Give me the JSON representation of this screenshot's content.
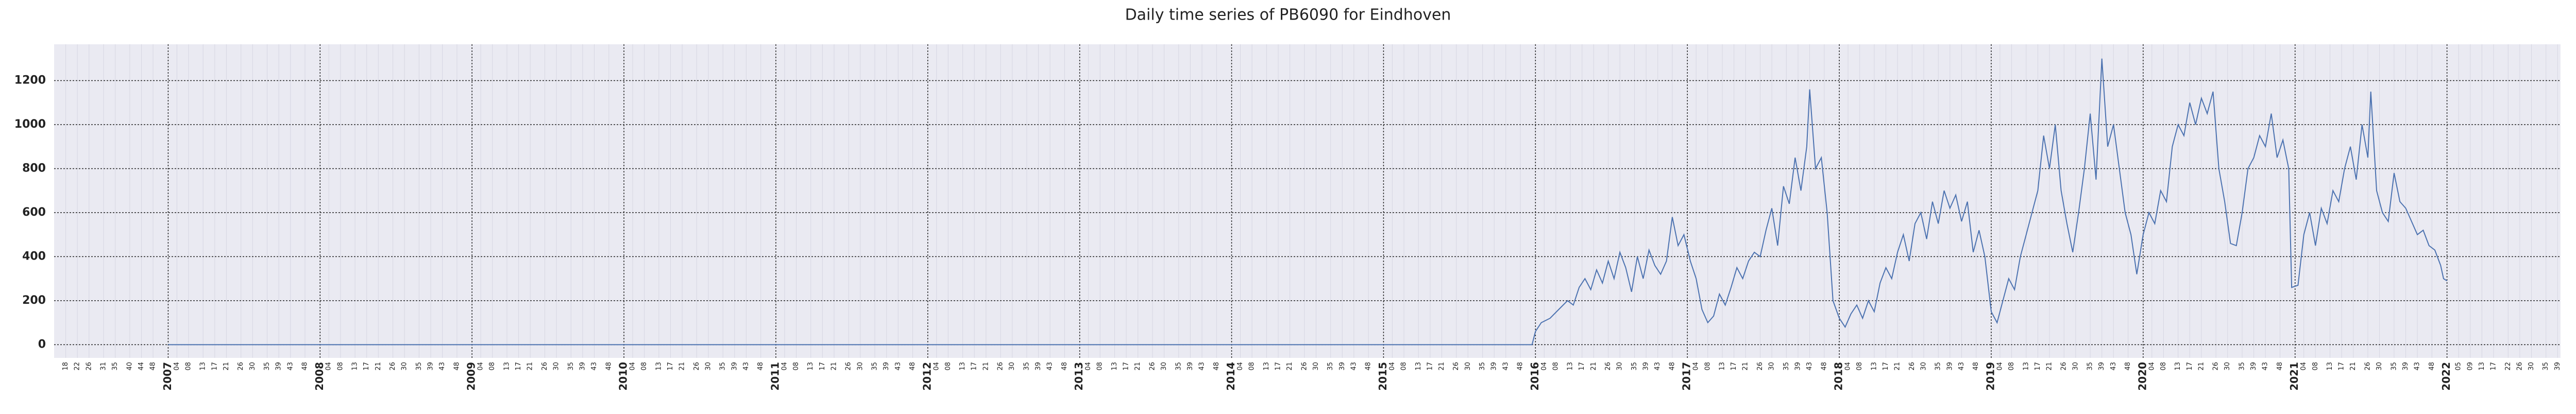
{
  "chart_data": {
    "type": "line",
    "title": "Daily time series of PB6090 for Eindhoven",
    "xlim": [
      "2006-W14",
      "2022-W40"
    ],
    "ylim": [
      -60,
      1365
    ],
    "yticks": [
      0,
      200,
      400,
      600,
      800,
      1000,
      1200
    ],
    "grid": true,
    "background": "#eaeaf2",
    "xticks": [
      {
        "value": "2007-W01",
        "label": "2007"
      },
      {
        "value": "2008-W01",
        "label": "2008"
      },
      {
        "value": "2009-W01",
        "label": "2009"
      },
      {
        "value": "2010-W01",
        "label": "2010"
      },
      {
        "value": "2011-W01",
        "label": "2011"
      },
      {
        "value": "2012-W01",
        "label": "2012"
      },
      {
        "value": "2013-W01",
        "label": "2013"
      },
      {
        "value": "2014-W01",
        "label": "2014"
      },
      {
        "value": "2015-W01",
        "label": "2015"
      },
      {
        "value": "2016-W01",
        "label": "2016"
      },
      {
        "value": "2017-W01",
        "label": "2017"
      },
      {
        "value": "2018-W01",
        "label": "2018"
      },
      {
        "value": "2019-W01",
        "label": "2019"
      },
      {
        "value": "2020-W01",
        "label": "2020"
      },
      {
        "value": "2021-W01",
        "label": "2021"
      },
      {
        "value": "2022-W01",
        "label": "2022"
      }
    ],
    "minor_xticks": [
      {
        "value": "2006-W18",
        "label": "18"
      },
      {
        "value": "2006-W22",
        "label": "22"
      },
      {
        "value": "2006-W26",
        "label": "26"
      },
      {
        "value": "2006-W31",
        "label": "31"
      },
      {
        "value": "2006-W35",
        "label": "35"
      },
      {
        "value": "2006-W40",
        "label": "40"
      },
      {
        "value": "2006-W44",
        "label": "44"
      },
      {
        "value": "2006-W48",
        "label": "48"
      },
      {
        "value": "2007-W04",
        "label": "04"
      },
      {
        "value": "2007-W08",
        "label": "08"
      },
      {
        "value": "2007-W13",
        "label": "13"
      },
      {
        "value": "2007-W17",
        "label": "17"
      },
      {
        "value": "2007-W21",
        "label": "21"
      },
      {
        "value": "2007-W26",
        "label": "26"
      },
      {
        "value": "2007-W30",
        "label": "30"
      },
      {
        "value": "2007-W35",
        "label": "35"
      },
      {
        "value": "2007-W39",
        "label": "39"
      },
      {
        "value": "2007-W43",
        "label": "43"
      },
      {
        "value": "2007-W48",
        "label": "48"
      },
      {
        "value": "2008-W04",
        "label": "04"
      },
      {
        "value": "2008-W08",
        "label": "08"
      },
      {
        "value": "2008-W13",
        "label": "13"
      },
      {
        "value": "2008-W17",
        "label": "17"
      },
      {
        "value": "2008-W21",
        "label": "21"
      },
      {
        "value": "2008-W26",
        "label": "26"
      },
      {
        "value": "2008-W30",
        "label": "30"
      },
      {
        "value": "2008-W35",
        "label": "35"
      },
      {
        "value": "2008-W39",
        "label": "39"
      },
      {
        "value": "2008-W43",
        "label": "43"
      },
      {
        "value": "2008-W48",
        "label": "48"
      },
      {
        "value": "2009-W04",
        "label": "04"
      },
      {
        "value": "2009-W08",
        "label": "08"
      },
      {
        "value": "2009-W13",
        "label": "13"
      },
      {
        "value": "2009-W17",
        "label": "17"
      },
      {
        "value": "2009-W21",
        "label": "21"
      },
      {
        "value": "2009-W26",
        "label": "26"
      },
      {
        "value": "2009-W30",
        "label": "30"
      },
      {
        "value": "2009-W35",
        "label": "35"
      },
      {
        "value": "2009-W39",
        "label": "39"
      },
      {
        "value": "2009-W43",
        "label": "43"
      },
      {
        "value": "2009-W48",
        "label": "48"
      },
      {
        "value": "2010-W04",
        "label": "04"
      },
      {
        "value": "2010-W08",
        "label": "08"
      },
      {
        "value": "2010-W13",
        "label": "13"
      },
      {
        "value": "2010-W17",
        "label": "17"
      },
      {
        "value": "2010-W21",
        "label": "21"
      },
      {
        "value": "2010-W26",
        "label": "26"
      },
      {
        "value": "2010-W30",
        "label": "30"
      },
      {
        "value": "2010-W35",
        "label": "35"
      },
      {
        "value": "2010-W39",
        "label": "39"
      },
      {
        "value": "2010-W43",
        "label": "43"
      },
      {
        "value": "2010-W48",
        "label": "48"
      },
      {
        "value": "2011-W04",
        "label": "04"
      },
      {
        "value": "2011-W08",
        "label": "08"
      },
      {
        "value": "2011-W13",
        "label": "13"
      },
      {
        "value": "2011-W17",
        "label": "17"
      },
      {
        "value": "2011-W21",
        "label": "21"
      },
      {
        "value": "2011-W26",
        "label": "26"
      },
      {
        "value": "2011-W30",
        "label": "30"
      },
      {
        "value": "2011-W35",
        "label": "35"
      },
      {
        "value": "2011-W39",
        "label": "39"
      },
      {
        "value": "2011-W43",
        "label": "43"
      },
      {
        "value": "2011-W48",
        "label": "48"
      },
      {
        "value": "2012-W04",
        "label": "04"
      },
      {
        "value": "2012-W08",
        "label": "08"
      },
      {
        "value": "2012-W13",
        "label": "13"
      },
      {
        "value": "2012-W17",
        "label": "17"
      },
      {
        "value": "2012-W21",
        "label": "21"
      },
      {
        "value": "2012-W26",
        "label": "26"
      },
      {
        "value": "2012-W30",
        "label": "30"
      },
      {
        "value": "2012-W35",
        "label": "35"
      },
      {
        "value": "2012-W39",
        "label": "39"
      },
      {
        "value": "2012-W43",
        "label": "43"
      },
      {
        "value": "2012-W48",
        "label": "48"
      },
      {
        "value": "2013-W04",
        "label": "04"
      },
      {
        "value": "2013-W08",
        "label": "08"
      },
      {
        "value": "2013-W13",
        "label": "13"
      },
      {
        "value": "2013-W17",
        "label": "17"
      },
      {
        "value": "2013-W21",
        "label": "21"
      },
      {
        "value": "2013-W26",
        "label": "26"
      },
      {
        "value": "2013-W30",
        "label": "30"
      },
      {
        "value": "2013-W35",
        "label": "35"
      },
      {
        "value": "2013-W39",
        "label": "39"
      },
      {
        "value": "2013-W43",
        "label": "43"
      },
      {
        "value": "2013-W48",
        "label": "48"
      },
      {
        "value": "2014-W04",
        "label": "04"
      },
      {
        "value": "2014-W08",
        "label": "08"
      },
      {
        "value": "2014-W13",
        "label": "13"
      },
      {
        "value": "2014-W17",
        "label": "17"
      },
      {
        "value": "2014-W21",
        "label": "21"
      },
      {
        "value": "2014-W26",
        "label": "26"
      },
      {
        "value": "2014-W30",
        "label": "30"
      },
      {
        "value": "2014-W35",
        "label": "35"
      },
      {
        "value": "2014-W39",
        "label": "39"
      },
      {
        "value": "2014-W43",
        "label": "43"
      },
      {
        "value": "2014-W48",
        "label": "48"
      },
      {
        "value": "2015-W04",
        "label": "04"
      },
      {
        "value": "2015-W08",
        "label": "08"
      },
      {
        "value": "2015-W13",
        "label": "13"
      },
      {
        "value": "2015-W17",
        "label": "17"
      },
      {
        "value": "2015-W21",
        "label": "21"
      },
      {
        "value": "2015-W26",
        "label": "26"
      },
      {
        "value": "2015-W30",
        "label": "30"
      },
      {
        "value": "2015-W35",
        "label": "35"
      },
      {
        "value": "2015-W39",
        "label": "39"
      },
      {
        "value": "2015-W43",
        "label": "43"
      },
      {
        "value": "2015-W48",
        "label": "48"
      },
      {
        "value": "2016-W04",
        "label": "04"
      },
      {
        "value": "2016-W08",
        "label": "08"
      },
      {
        "value": "2016-W13",
        "label": "13"
      },
      {
        "value": "2016-W17",
        "label": "17"
      },
      {
        "value": "2016-W21",
        "label": "21"
      },
      {
        "value": "2016-W26",
        "label": "26"
      },
      {
        "value": "2016-W30",
        "label": "30"
      },
      {
        "value": "2016-W35",
        "label": "35"
      },
      {
        "value": "2016-W39",
        "label": "39"
      },
      {
        "value": "2016-W43",
        "label": "43"
      },
      {
        "value": "2016-W48",
        "label": "48"
      },
      {
        "value": "2017-W04",
        "label": "04"
      },
      {
        "value": "2017-W08",
        "label": "08"
      },
      {
        "value": "2017-W13",
        "label": "13"
      },
      {
        "value": "2017-W17",
        "label": "17"
      },
      {
        "value": "2017-W21",
        "label": "21"
      },
      {
        "value": "2017-W26",
        "label": "26"
      },
      {
        "value": "2017-W30",
        "label": "30"
      },
      {
        "value": "2017-W35",
        "label": "35"
      },
      {
        "value": "2017-W39",
        "label": "39"
      },
      {
        "value": "2017-W43",
        "label": "43"
      },
      {
        "value": "2017-W48",
        "label": "48"
      },
      {
        "value": "2018-W04",
        "label": "04"
      },
      {
        "value": "2018-W08",
        "label": "08"
      },
      {
        "value": "2018-W13",
        "label": "13"
      },
      {
        "value": "2018-W17",
        "label": "17"
      },
      {
        "value": "2018-W21",
        "label": "21"
      },
      {
        "value": "2018-W26",
        "label": "26"
      },
      {
        "value": "2018-W30",
        "label": "30"
      },
      {
        "value": "2018-W35",
        "label": "35"
      },
      {
        "value": "2018-W39",
        "label": "39"
      },
      {
        "value": "2018-W43",
        "label": "43"
      },
      {
        "value": "2018-W48",
        "label": "48"
      },
      {
        "value": "2019-W04",
        "label": "04"
      },
      {
        "value": "2019-W08",
        "label": "08"
      },
      {
        "value": "2019-W13",
        "label": "13"
      },
      {
        "value": "2019-W17",
        "label": "17"
      },
      {
        "value": "2019-W21",
        "label": "21"
      },
      {
        "value": "2019-W26",
        "label": "26"
      },
      {
        "value": "2019-W30",
        "label": "30"
      },
      {
        "value": "2019-W35",
        "label": "35"
      },
      {
        "value": "2019-W39",
        "label": "39"
      },
      {
        "value": "2019-W43",
        "label": "43"
      },
      {
        "value": "2019-W48",
        "label": "48"
      },
      {
        "value": "2020-W04",
        "label": "04"
      },
      {
        "value": "2020-W08",
        "label": "08"
      },
      {
        "value": "2020-W13",
        "label": "13"
      },
      {
        "value": "2020-W17",
        "label": "17"
      },
      {
        "value": "2020-W21",
        "label": "21"
      },
      {
        "value": "2020-W26",
        "label": "26"
      },
      {
        "value": "2020-W30",
        "label": "30"
      },
      {
        "value": "2020-W35",
        "label": "35"
      },
      {
        "value": "2020-W39",
        "label": "39"
      },
      {
        "value": "2020-W43",
        "label": "43"
      },
      {
        "value": "2020-W48",
        "label": "48"
      },
      {
        "value": "2021-W04",
        "label": "04"
      },
      {
        "value": "2021-W08",
        "label": "08"
      },
      {
        "value": "2021-W13",
        "label": "13"
      },
      {
        "value": "2021-W17",
        "label": "17"
      },
      {
        "value": "2021-W21",
        "label": "21"
      },
      {
        "value": "2021-W26",
        "label": "26"
      },
      {
        "value": "2021-W30",
        "label": "30"
      },
      {
        "value": "2021-W35",
        "label": "35"
      },
      {
        "value": "2021-W39",
        "label": "39"
      },
      {
        "value": "2021-W43",
        "label": "43"
      },
      {
        "value": "2021-W48",
        "label": "48"
      },
      {
        "value": "2022-W05",
        "label": "05"
      },
      {
        "value": "2022-W09",
        "label": "09"
      },
      {
        "value": "2022-W13",
        "label": "13"
      },
      {
        "value": "2022-W17",
        "label": "17"
      },
      {
        "value": "2022-W22",
        "label": "22"
      },
      {
        "value": "2022-W26",
        "label": "26"
      },
      {
        "value": "2022-W30",
        "label": "30"
      },
      {
        "value": "2022-W35",
        "label": "35"
      },
      {
        "value": "2022-W39",
        "label": "39"
      }
    ],
    "x": [
      "2007-W01",
      "2015-W52",
      "2016-W01",
      "2016-W03",
      "2016-W06",
      "2016-W09",
      "2016-W12",
      "2016-W14",
      "2016-W16",
      "2016-W18",
      "2016-W20",
      "2016-W22",
      "2016-W24",
      "2016-W26",
      "2016-W28",
      "2016-W30",
      "2016-W32",
      "2016-W34",
      "2016-W36",
      "2016-W38",
      "2016-W40",
      "2016-W42",
      "2016-W44",
      "2016-W46",
      "2016-W48",
      "2016-W50",
      "2016-W52",
      "2017-W02",
      "2017-W04",
      "2017-W06",
      "2017-W08",
      "2017-W10",
      "2017-W12",
      "2017-W14",
      "2017-W16",
      "2017-W18",
      "2017-W20",
      "2017-W22",
      "2017-W24",
      "2017-W26",
      "2017-W28",
      "2017-W30",
      "2017-W32",
      "2017-W34",
      "2017-W36",
      "2017-W38",
      "2017-W40",
      "2017-W42",
      "2017-W43",
      "2017-W45",
      "2017-W47",
      "2017-W49",
      "2017-W51",
      "2018-W01",
      "2018-W03",
      "2018-W05",
      "2018-W07",
      "2018-W09",
      "2018-W11",
      "2018-W13",
      "2018-W15",
      "2018-W17",
      "2018-W19",
      "2018-W21",
      "2018-W23",
      "2018-W25",
      "2018-W27",
      "2018-W29",
      "2018-W31",
      "2018-W33",
      "2018-W35",
      "2018-W37",
      "2018-W39",
      "2018-W41",
      "2018-W43",
      "2018-W45",
      "2018-W47",
      "2018-W49",
      "2018-W51",
      "2019-W01",
      "2019-W03",
      "2019-W05",
      "2019-W07",
      "2019-W09",
      "2019-W11",
      "2019-W13",
      "2019-W15",
      "2019-W17",
      "2019-W19",
      "2019-W21",
      "2019-W23",
      "2019-W25",
      "2019-W27",
      "2019-W29",
      "2019-W31",
      "2019-W33",
      "2019-W35",
      "2019-W37",
      "2019-W39",
      "2019-W41",
      "2019-W43",
      "2019-W45",
      "2019-W47",
      "2019-W49",
      "2019-W51",
      "2020-W01",
      "2020-W03",
      "2020-W05",
      "2020-W07",
      "2020-W09",
      "2020-W11",
      "2020-W13",
      "2020-W15",
      "2020-W17",
      "2020-W19",
      "2020-W21",
      "2020-W23",
      "2020-W25",
      "2020-W27",
      "2020-W29",
      "2020-W31",
      "2020-W33",
      "2020-W35",
      "2020-W37",
      "2020-W39",
      "2020-W41",
      "2020-W43",
      "2020-W45",
      "2020-W47",
      "2020-W49",
      "2020-W51",
      "2020-W52",
      "2021-W02",
      "2021-W04",
      "2021-W06",
      "2021-W08",
      "2021-W10",
      "2021-W12",
      "2021-W14",
      "2021-W16",
      "2021-W18",
      "2021-W20",
      "2021-W22",
      "2021-W24",
      "2021-W26",
      "2021-W27",
      "2021-W29",
      "2021-W31",
      "2021-W33",
      "2021-W35",
      "2021-W37",
      "2021-W39",
      "2021-W41",
      "2021-W43",
      "2021-W45",
      "2021-W47",
      "2021-W49",
      "2021-W51",
      "2021-W52",
      "2022-W01"
    ],
    "series": [
      {
        "color": "#4c72b0",
        "values": [
          0,
          0,
          60,
          100,
          120,
          160,
          200,
          180,
          260,
          300,
          250,
          340,
          280,
          380,
          300,
          420,
          350,
          240,
          400,
          300,
          430,
          360,
          320,
          380,
          580,
          450,
          500,
          380,
          300,
          160,
          100,
          130,
          230,
          180,
          260,
          350,
          300,
          380,
          420,
          400,
          520,
          620,
          450,
          720,
          640,
          850,
          700,
          900,
          1160,
          800,
          850,
          600,
          200,
          120,
          80,
          140,
          180,
          120,
          200,
          150,
          280,
          350,
          300,
          420,
          500,
          380,
          550,
          600,
          480,
          650,
          550,
          700,
          620,
          680,
          560,
          650,
          420,
          520,
          400,
          150,
          100,
          200,
          300,
          250,
          400,
          500,
          600,
          700,
          950,
          800,
          1000,
          700,
          550,
          420,
          600,
          800,
          1050,
          750,
          1300,
          900,
          1000,
          800,
          600,
          500,
          320,
          500,
          600,
          550,
          700,
          650,
          900,
          1000,
          950,
          1100,
          1000,
          1120,
          1050,
          1150,
          800,
          650,
          460,
          450,
          600,
          800,
          850,
          950,
          900,
          1050,
          850,
          930,
          800,
          260,
          270,
          500,
          600,
          450,
          620,
          550,
          700,
          650,
          800,
          900,
          750,
          1000,
          850,
          1150,
          700,
          600,
          560,
          780,
          650,
          620,
          560,
          500,
          520,
          450,
          430,
          360,
          300,
          290
        ]
      }
    ]
  }
}
